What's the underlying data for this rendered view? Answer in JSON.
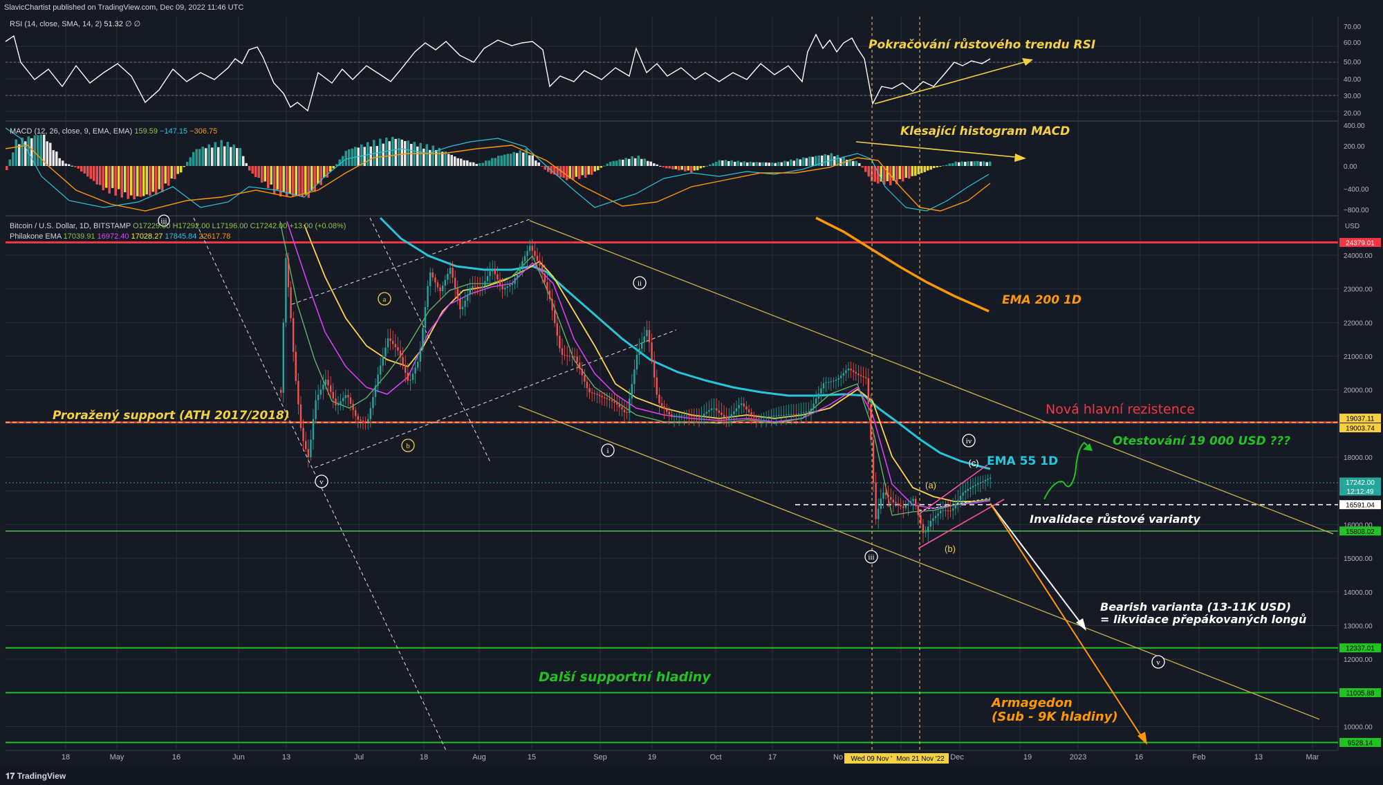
{
  "publisher_line": "SlavicChartist published on TradingView.com, Dec 09, 2022 11:46 UTC",
  "brand": "TradingView",
  "indicators": {
    "rsi": {
      "label": "RSI (14, close, SMA, 14, 2)",
      "value": "51.32",
      "extra": "∅ ∅"
    },
    "macd": {
      "label": "MACD (12, 26, close, 9, EMA, EMA)",
      "v1": "159.59",
      "v2": "−147.15",
      "v3": "−306.75"
    },
    "main": {
      "label": "Bitcoin / U.S. Dollar, 1D, BITSTAMP",
      "o": "O17229.00",
      "h": "H17292.00",
      "l": "L17196.00",
      "c": "C17242.00",
      "chg": "+13.00 (+0.08%)"
    },
    "ema": {
      "label": "Philakone EMA",
      "e1": "17039.91",
      "e2": "16972.40",
      "e3": "17028.27",
      "e4": "17845.84",
      "e5": "22617.78"
    }
  },
  "annotations": {
    "rsi_trend": "Pokračování růstového trendu RSI",
    "macd_hist": "Klesající histogram MACD",
    "ema200": "EMA 200 1D",
    "broken_support": "Proražený support (ATH 2017/2018)",
    "new_resistance": "Nová hlavní rezistence",
    "retest": "Otestování 19 000 USD ???",
    "ema55": "EMA 55 1D",
    "invalidation": "Invalidace růstové varianty",
    "bearish_1": "Bearish varianta (13-11K USD)",
    "bearish_2": "= likvidace přepákovaných longů",
    "supports": "Další supportní hladiny",
    "armageddon_1": "Armagedon",
    "armageddon_2": "(Sub - 9K hladiny)"
  },
  "wave_labels": {
    "iii_top": "iii",
    "a_small": "a",
    "b_small": "b",
    "v_left": "v",
    "ii": "ii",
    "i": "i",
    "iv": "iv",
    "c_paren": "(c)",
    "a_paren": "(a)",
    "b_paren": "(b)",
    "iii_bottom": "iii",
    "v_right": "v"
  },
  "price_tags": [
    "USD",
    "24379.01",
    "19037.11",
    "19003.74",
    "17242.00",
    "12:12:49",
    "16591.04",
    "15808.02",
    "12337.01",
    "11005.88",
    "9528.14"
  ],
  "price_scale": [
    "24000.00",
    "23000.00",
    "22000.00",
    "21000.00",
    "20000.00",
    "18000.00",
    "16000.00",
    "15000.00",
    "14000.00",
    "13000.00",
    "12000.00",
    "10000.00"
  ],
  "rsi_scale": [
    "70.00",
    "60.00",
    "50.00",
    "40.00",
    "30.00",
    "20.00"
  ],
  "macd_scale": [
    "400.00",
    "200.00",
    "0.00",
    "−400.00",
    "−800.00"
  ],
  "time_labels": [
    "18",
    "May",
    "16",
    "Jun",
    "13",
    "Jul",
    "18",
    "Aug",
    "15",
    "Sep",
    "19",
    "Oct",
    "17",
    "No",
    "Dec",
    "19",
    "2023",
    "16",
    "Feb",
    "13",
    "Mar"
  ],
  "date_tags": [
    "Wed 09 Nov '2",
    "Mon 21 Nov '22"
  ],
  "colors": {
    "bg": "#161a25",
    "grid": "#2a2e39",
    "resistance": "#f23645",
    "support": "#4caf50",
    "accent_yellow": "#f5d142",
    "accent_orange": "#ff9800",
    "accent_green": "#22c222",
    "accent_red": "#f23645",
    "ema55": "#26c6da"
  },
  "chart_data": {
    "type": "line",
    "title": "",
    "series_symbol": "BTC/USD 1D",
    "ylim": [
      9500,
      25000
    ],
    "x": [
      "Jun 13",
      "Jun 18",
      "Jul 1",
      "Jul 18",
      "Aug 1",
      "Aug 15",
      "Sep 1",
      "Sep 19",
      "Oct 1",
      "Oct 17",
      "Nov 1",
      "Nov 9",
      "Nov 21",
      "Dec 1",
      "Dec 9"
    ],
    "y": [
      22500,
      18000,
      19500,
      22500,
      23200,
      24200,
      20000,
      19300,
      19400,
      19500,
      20500,
      15800,
      15600,
      16900,
      17242
    ],
    "levels": [
      24379.01,
      19037.11,
      19003.74,
      16591.04,
      15808.02,
      12337.01,
      11005.88,
      9528.14
    ],
    "last_price": 17242.0,
    "rsi_levels": [
      70,
      30
    ],
    "rsi_last": 51.32
  }
}
